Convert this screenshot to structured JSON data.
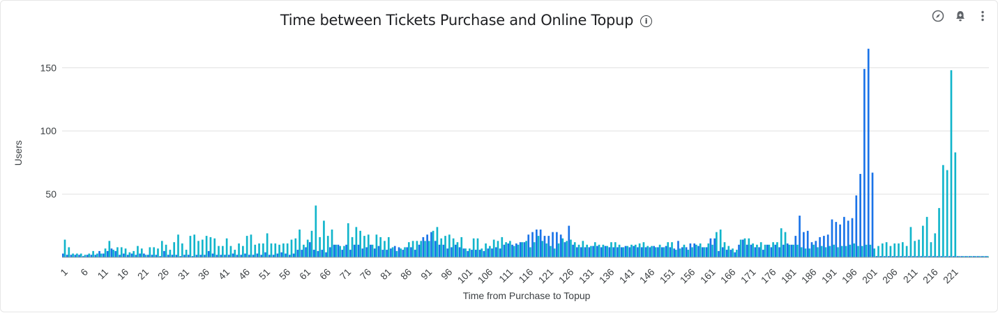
{
  "header": {
    "title": "Time between Tickets Purchase and Online Topup",
    "info_icon": "info-icon"
  },
  "toolbar": {
    "icons": [
      "compass-icon",
      "add-alert-icon",
      "more-vert-icon"
    ]
  },
  "colors": {
    "series_dark": "#1a73e8",
    "series_teal": "#12b5cb",
    "gridline": "#e0e0e0",
    "axis_text": "#3c4043"
  },
  "chart_data": {
    "type": "bar",
    "title": "Time between Tickets Purchase and Online Topup",
    "xlabel": "Time from Purchase to Topup",
    "ylabel": "Users",
    "ylim": [
      0,
      170
    ],
    "yticks": [
      50,
      100,
      150
    ],
    "grid": true,
    "categories": [
      1,
      2,
      3,
      4,
      5,
      6,
      7,
      8,
      9,
      10,
      11,
      12,
      13,
      14,
      15,
      16,
      17,
      18,
      19,
      20,
      21,
      22,
      23,
      24,
      25,
      26,
      27,
      28,
      29,
      30,
      31,
      32,
      33,
      34,
      35,
      36,
      37,
      38,
      39,
      40,
      41,
      42,
      43,
      44,
      45,
      46,
      47,
      48,
      49,
      50,
      51,
      52,
      53,
      54,
      55,
      56,
      57,
      58,
      59,
      60,
      61,
      62,
      63,
      64,
      65,
      66,
      67,
      68,
      69,
      70,
      71,
      72,
      73,
      74,
      75,
      76,
      77,
      78,
      79,
      80,
      81,
      82,
      83,
      84,
      85,
      86,
      87,
      88,
      89,
      90,
      91,
      92,
      93,
      94,
      95,
      96,
      97,
      98,
      99,
      100,
      101,
      102,
      103,
      104,
      105,
      106,
      107,
      108,
      109,
      110,
      111,
      112,
      113,
      114,
      115,
      116,
      117,
      118,
      119,
      120,
      121,
      122,
      123,
      124,
      125,
      126,
      127,
      128,
      129,
      130,
      131,
      132,
      133,
      134,
      135,
      136,
      137,
      138,
      139,
      140,
      141,
      142,
      143,
      144,
      145,
      146,
      147,
      148,
      149,
      150,
      151,
      152,
      153,
      154,
      155,
      156,
      157,
      158,
      159,
      160,
      161,
      162,
      163,
      164,
      165,
      166,
      167,
      168,
      169,
      170,
      171,
      172,
      173,
      174,
      175,
      176,
      177,
      178,
      179,
      180,
      181,
      182,
      183,
      184,
      185,
      186,
      187,
      188,
      189,
      190,
      191,
      192,
      193,
      194,
      195,
      196,
      197,
      198,
      199,
      200,
      201,
      202,
      203,
      204,
      205,
      206,
      207,
      208,
      209,
      210,
      211,
      212,
      213,
      214,
      215,
      216,
      217,
      218,
      219,
      220,
      221,
      222,
      223,
      224,
      225,
      226,
      227,
      228,
      229
    ],
    "xticks": [
      "1",
      "6",
      "11",
      "16",
      "21",
      "26",
      "31",
      "36",
      "41",
      "46",
      "51",
      "56",
      "61",
      "66",
      "71",
      "76",
      "81",
      "86",
      "91",
      "96",
      "101",
      "106",
      "111",
      "116",
      "121",
      "126",
      "131",
      "136",
      "141",
      "146",
      "151",
      "156",
      "161",
      "166",
      "171",
      "176",
      "181",
      "186",
      "191",
      "196",
      "201",
      "206",
      "211",
      "216",
      "221"
    ],
    "series": [
      {
        "values": [
          3,
          2,
          2,
          2,
          2,
          1,
          2,
          2,
          2,
          5,
          3,
          5,
          7,
          5,
          2,
          3,
          2,
          3,
          2,
          3,
          3,
          2,
          2,
          2,
          1,
          5,
          2,
          2,
          2,
          1,
          2,
          2,
          1,
          2,
          2,
          2,
          5,
          3,
          2,
          2,
          2,
          2,
          3,
          2,
          2,
          3,
          2,
          2,
          3,
          2,
          4,
          2,
          2,
          3,
          4,
          3,
          2,
          3,
          6,
          6,
          8,
          12,
          6,
          5,
          6,
          4,
          8,
          10,
          10,
          6,
          10,
          6,
          10,
          10,
          7,
          8,
          10,
          7,
          9,
          6,
          6,
          7,
          9,
          8,
          6,
          8,
          8,
          6,
          10,
          16,
          18,
          20,
          13,
          10,
          10,
          7,
          8,
          10,
          8,
          7,
          5,
          6,
          6,
          6,
          5,
          7,
          7,
          8,
          7,
          10,
          11,
          10,
          11,
          12,
          12,
          18,
          20,
          22,
          22,
          17,
          17,
          20,
          20,
          18,
          12,
          25,
          10,
          8,
          8,
          8,
          8,
          9,
          9,
          8,
          9,
          8,
          8,
          8,
          8,
          9,
          8,
          9,
          8,
          8,
          8,
          8,
          9,
          8,
          8,
          9,
          8,
          7,
          13,
          8,
          8,
          11,
          11,
          9,
          8,
          8,
          15,
          15,
          5,
          8,
          6,
          6,
          4,
          10,
          14,
          10,
          10,
          8,
          8,
          6,
          10,
          8,
          10,
          8,
          10,
          11,
          10,
          17,
          33,
          20,
          21,
          12,
          13,
          16,
          17,
          18,
          30,
          28,
          26,
          32,
          29,
          31,
          49,
          66,
          149,
          165,
          67,
          1,
          1,
          1,
          1,
          1,
          1,
          1,
          1,
          1,
          1,
          1,
          1,
          1,
          1,
          1,
          1,
          1,
          1,
          1,
          1,
          1,
          1,
          1,
          1,
          1,
          1,
          1,
          1
        ]
      },
      {
        "values": [
          14,
          8,
          3,
          3,
          3,
          2,
          3,
          5,
          3,
          3,
          7,
          13,
          6,
          8,
          8,
          7,
          4,
          5,
          9,
          7,
          2,
          8,
          8,
          7,
          13,
          10,
          6,
          12,
          18,
          11,
          6,
          17,
          18,
          13,
          14,
          17,
          16,
          15,
          9,
          9,
          15,
          9,
          6,
          11,
          9,
          17,
          18,
          10,
          11,
          11,
          19,
          11,
          11,
          10,
          11,
          11,
          14,
          15,
          22,
          10,
          14,
          21,
          41,
          16,
          29,
          17,
          22,
          10,
          9,
          9,
          27,
          16,
          24,
          21,
          17,
          18,
          10,
          18,
          16,
          13,
          16,
          8,
          5,
          7,
          8,
          12,
          13,
          13,
          13,
          13,
          13,
          21,
          24,
          15,
          17,
          18,
          15,
          12,
          16,
          7,
          7,
          15,
          15,
          7,
          11,
          9,
          14,
          13,
          16,
          12,
          13,
          9,
          10,
          12,
          13,
          8,
          12,
          17,
          13,
          11,
          9,
          7,
          11,
          15,
          13,
          14,
          12,
          10,
          13,
          10,
          9,
          12,
          10,
          10,
          9,
          12,
          12,
          10,
          8,
          9,
          10,
          10,
          11,
          12,
          9,
          9,
          8,
          10,
          8,
          12,
          12,
          6,
          7,
          10,
          6,
          8,
          10,
          11,
          8,
          11,
          10,
          20,
          22,
          12,
          9,
          7,
          6,
          14,
          15,
          15,
          11,
          10,
          12,
          10,
          10,
          12,
          12,
          23,
          20,
          10,
          10,
          10,
          8,
          7,
          7,
          10,
          8,
          9,
          8,
          9,
          10,
          8,
          9,
          9,
          10,
          11,
          9,
          9,
          10,
          10,
          7,
          9,
          11,
          12,
          9,
          11,
          11,
          12,
          9,
          24,
          13,
          14,
          25,
          32,
          12,
          19,
          39,
          73,
          69,
          148,
          83,
          1,
          1,
          1,
          1,
          1,
          1,
          1,
          1
        ]
      }
    ]
  }
}
